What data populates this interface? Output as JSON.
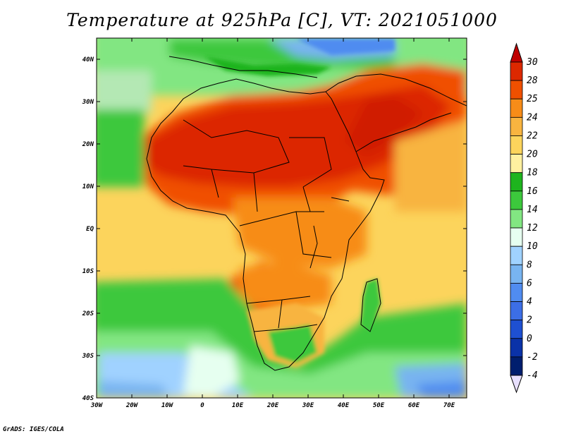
{
  "title": "Temperature at 925hPa [C], VT: 2021051000",
  "credit": "GrADS: IGES/COLA",
  "map": {
    "projection": "lat-lon",
    "lon_range": [
      -30,
      75
    ],
    "lat_range": [
      -40,
      45
    ],
    "lat_ticks": [
      {
        "value": 40,
        "label": "40N"
      },
      {
        "value": 30,
        "label": "30N"
      },
      {
        "value": 20,
        "label": "20N"
      },
      {
        "value": 10,
        "label": "10N"
      },
      {
        "value": 0,
        "label": "EQ"
      },
      {
        "value": -10,
        "label": "10S"
      },
      {
        "value": -20,
        "label": "20S"
      },
      {
        "value": -30,
        "label": "30S"
      },
      {
        "value": -40,
        "label": "40S"
      }
    ],
    "lon_ticks": [
      {
        "value": -30,
        "label": "30W"
      },
      {
        "value": -20,
        "label": "20W"
      },
      {
        "value": -10,
        "label": "10W"
      },
      {
        "value": 0,
        "label": "0"
      },
      {
        "value": 10,
        "label": "10E"
      },
      {
        "value": 20,
        "label": "20E"
      },
      {
        "value": 30,
        "label": "30E"
      },
      {
        "value": 40,
        "label": "40E"
      },
      {
        "value": 50,
        "label": "50E"
      },
      {
        "value": 60,
        "label": "60E"
      },
      {
        "value": 70,
        "label": "70E"
      }
    ]
  },
  "colorbar": {
    "labels": [
      "30",
      "28",
      "25",
      "24",
      "22",
      "20",
      "18",
      "16",
      "14",
      "12",
      "10",
      "8",
      "6",
      "4",
      "2",
      "0",
      "-2",
      "-4"
    ],
    "colors": [
      "#b40000",
      "#dc2800",
      "#f05000",
      "#f78c18",
      "#f8b440",
      "#fcd45c",
      "#fff0a0",
      "#1eb41e",
      "#3cc83c",
      "#82e682",
      "#e6fff0",
      "#a0d2ff",
      "#78b4f0",
      "#508cf0",
      "#3c6ee6",
      "#1e50d2",
      "#0a32a8",
      "#001e6e"
    ],
    "top_color": "#c00000",
    "bottom_color": "#e8e0ff"
  }
}
